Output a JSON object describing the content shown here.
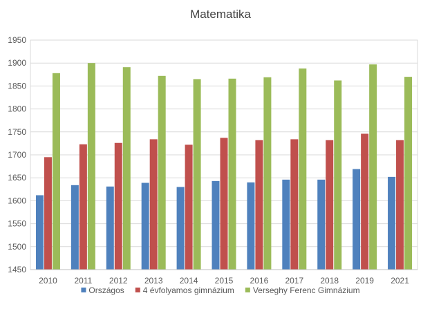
{
  "chart_data": {
    "type": "bar",
    "title": "Matematika",
    "xlabel": "",
    "ylabel": "",
    "ylim": [
      1450,
      1950
    ],
    "ytick_step": 50,
    "grid": true,
    "legend_position": "bottom",
    "categories": [
      "2010",
      "2011",
      "2012",
      "2013",
      "2014",
      "2015",
      "2016",
      "2017",
      "2018",
      "2019",
      "2021"
    ],
    "series": [
      {
        "name": "Országos",
        "color": "#4f81bd",
        "values": [
          1612,
          1634,
          1631,
          1639,
          1630,
          1643,
          1640,
          1646,
          1646,
          1669,
          1652
        ]
      },
      {
        "name": "4 évfolyamos gimnázium",
        "color": "#c0504d",
        "values": [
          1695,
          1723,
          1726,
          1734,
          1722,
          1737,
          1732,
          1734,
          1732,
          1746,
          1732
        ]
      },
      {
        "name": "Verseghy Ferenc Gimnázium",
        "color": "#9bbb59",
        "values": [
          1878,
          1900,
          1891,
          1872,
          1865,
          1866,
          1869,
          1888,
          1862,
          1897,
          1870
        ]
      }
    ]
  }
}
